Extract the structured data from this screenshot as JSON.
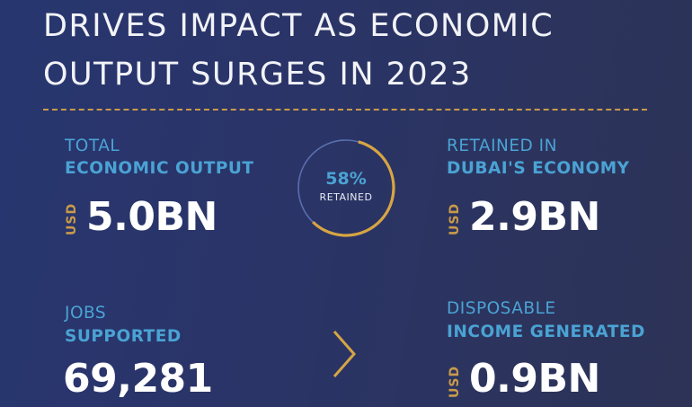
{
  "headline": {
    "line1": "DRIVES IMPACT AS ECONOMIC",
    "line2": "OUTPUT SURGES IN 2023"
  },
  "colors": {
    "background": "#2a3466",
    "accent_blue": "#4aa3d4",
    "accent_gold": "#c99a4a",
    "text_white": "#ffffff"
  },
  "stats": {
    "economic_output": {
      "label_light": "TOTAL",
      "label_bold": "ECONOMIC OUTPUT",
      "currency": "USD",
      "value": "5.0BN"
    },
    "retained": {
      "label_light": "RETAINED IN",
      "label_bold": "DUBAI'S ECONOMY",
      "currency": "USD",
      "value": "2.9BN"
    },
    "jobs": {
      "label_light": "JOBS",
      "label_bold": "SUPPORTED",
      "value": "69,281"
    },
    "income": {
      "label_light": "DISPOSABLE",
      "label_bold": "INCOME GENERATED",
      "currency": "USD",
      "value": "0.9BN"
    }
  },
  "ring": {
    "percent_text": "58%",
    "caption": "RETAINED",
    "fraction": 0.58
  },
  "icons": {
    "arrow": "chevron-right-icon"
  }
}
